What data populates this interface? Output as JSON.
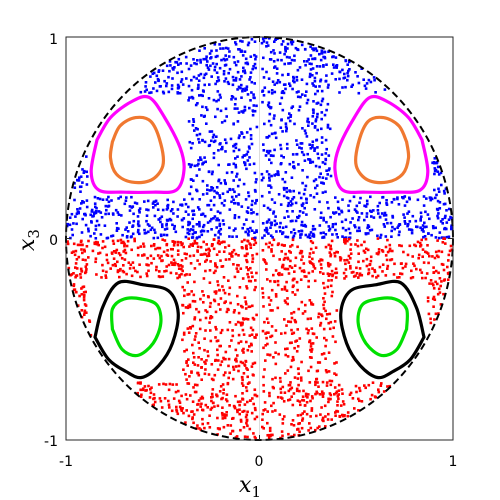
{
  "chart_data": {
    "type": "scatter",
    "title": "",
    "xlabel_var": "x",
    "xlabel_sub": "1",
    "ylabel_var": "x",
    "ylabel_sub": "3",
    "xlim": [
      -1,
      1
    ],
    "ylim": [
      -1,
      1
    ],
    "x_ticks": [
      "-1",
      "0",
      "1"
    ],
    "y_ticks": [
      "1",
      "0",
      "-1"
    ],
    "x_tick_values": [
      -1,
      0,
      1
    ],
    "y_tick_values": [
      1,
      0,
      -1
    ],
    "grid": false,
    "boundary": {
      "shape": "circle",
      "radius": 1,
      "style": "dashed",
      "color": "#000000"
    },
    "scatter_regions": [
      {
        "region": "upper",
        "y_range": [
          0,
          1
        ],
        "color": "#0000ff"
      },
      {
        "region": "lower",
        "y_range": [
          -1,
          0
        ],
        "color": "#ff0000"
      }
    ],
    "curves": [
      {
        "color": "#ff00ff",
        "points": [
          [
            -0.84,
            0.49
          ],
          [
            -0.77,
            0.6
          ],
          [
            -0.66,
            0.68
          ],
          [
            -0.57,
            0.7
          ],
          [
            -0.49,
            0.6
          ],
          [
            -0.41,
            0.45
          ],
          [
            -0.39,
            0.34
          ],
          [
            -0.43,
            0.24
          ],
          [
            -0.55,
            0.23
          ],
          [
            -0.7,
            0.23
          ],
          [
            -0.83,
            0.24
          ],
          [
            -0.87,
            0.33
          ],
          [
            -0.84,
            0.49
          ]
        ]
      },
      {
        "color": "#ff00ff",
        "points": [
          [
            0.84,
            0.49
          ],
          [
            0.77,
            0.6
          ],
          [
            0.66,
            0.68
          ],
          [
            0.57,
            0.7
          ],
          [
            0.49,
            0.6
          ],
          [
            0.41,
            0.45
          ],
          [
            0.39,
            0.34
          ],
          [
            0.43,
            0.24
          ],
          [
            0.55,
            0.23
          ],
          [
            0.7,
            0.23
          ],
          [
            0.83,
            0.24
          ],
          [
            0.87,
            0.33
          ],
          [
            0.84,
            0.49
          ]
        ]
      },
      {
        "color": "#f07830",
        "points": [
          [
            -0.76,
            0.48
          ],
          [
            -0.72,
            0.56
          ],
          [
            -0.64,
            0.6
          ],
          [
            -0.56,
            0.58
          ],
          [
            -0.51,
            0.47
          ],
          [
            -0.5,
            0.36
          ],
          [
            -0.56,
            0.29
          ],
          [
            -0.66,
            0.28
          ],
          [
            -0.74,
            0.32
          ],
          [
            -0.77,
            0.4
          ],
          [
            -0.76,
            0.48
          ]
        ]
      },
      {
        "color": "#f07830",
        "points": [
          [
            0.76,
            0.48
          ],
          [
            0.72,
            0.56
          ],
          [
            0.64,
            0.6
          ],
          [
            0.56,
            0.58
          ],
          [
            0.51,
            0.47
          ],
          [
            0.5,
            0.36
          ],
          [
            0.56,
            0.29
          ],
          [
            0.66,
            0.28
          ],
          [
            0.74,
            0.32
          ],
          [
            0.77,
            0.4
          ],
          [
            0.76,
            0.48
          ]
        ]
      },
      {
        "color": "#000000",
        "points": [
          [
            -0.85,
            -0.49
          ],
          [
            -0.81,
            -0.34
          ],
          [
            -0.73,
            -0.22
          ],
          [
            -0.6,
            -0.23
          ],
          [
            -0.47,
            -0.26
          ],
          [
            -0.42,
            -0.37
          ],
          [
            -0.45,
            -0.52
          ],
          [
            -0.52,
            -0.63
          ],
          [
            -0.61,
            -0.69
          ],
          [
            -0.69,
            -0.66
          ],
          [
            -0.78,
            -0.6
          ],
          [
            -0.85,
            -0.49
          ]
        ]
      },
      {
        "color": "#000000",
        "points": [
          [
            0.85,
            -0.49
          ],
          [
            0.81,
            -0.34
          ],
          [
            0.73,
            -0.22
          ],
          [
            0.6,
            -0.23
          ],
          [
            0.47,
            -0.26
          ],
          [
            0.42,
            -0.37
          ],
          [
            0.45,
            -0.52
          ],
          [
            0.52,
            -0.63
          ],
          [
            0.61,
            -0.69
          ],
          [
            0.69,
            -0.66
          ],
          [
            0.78,
            -0.6
          ],
          [
            0.85,
            -0.49
          ]
        ]
      },
      {
        "color": "#00e000",
        "points": [
          [
            -0.76,
            -0.45
          ],
          [
            -0.76,
            -0.35
          ],
          [
            -0.7,
            -0.3
          ],
          [
            -0.61,
            -0.3
          ],
          [
            -0.53,
            -0.33
          ],
          [
            -0.51,
            -0.42
          ],
          [
            -0.55,
            -0.52
          ],
          [
            -0.63,
            -0.58
          ],
          [
            -0.71,
            -0.55
          ],
          [
            -0.76,
            -0.45
          ]
        ]
      },
      {
        "color": "#00e000",
        "points": [
          [
            0.76,
            -0.45
          ],
          [
            0.76,
            -0.35
          ],
          [
            0.7,
            -0.3
          ],
          [
            0.61,
            -0.3
          ],
          [
            0.53,
            -0.33
          ],
          [
            0.51,
            -0.42
          ],
          [
            0.55,
            -0.52
          ],
          [
            0.63,
            -0.58
          ],
          [
            0.71,
            -0.55
          ],
          [
            0.76,
            -0.45
          ]
        ]
      }
    ]
  }
}
